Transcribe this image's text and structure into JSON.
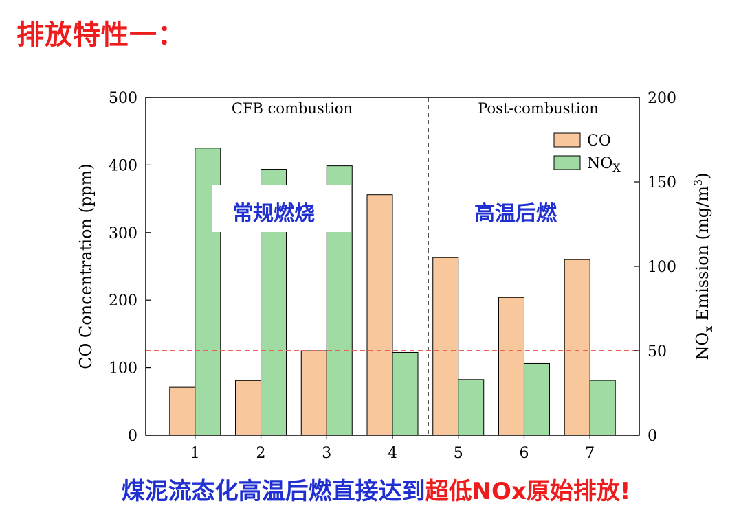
{
  "slide": {
    "title": "排放特性一：",
    "conclusion_blue": "煤泥流态化高温后燃直接达到",
    "conclusion_red": "超低NOx原始排放!"
  },
  "chart_data": {
    "type": "bar",
    "categories": [
      "1",
      "2",
      "3",
      "4",
      "5",
      "6",
      "7"
    ],
    "series": [
      {
        "name": "CO",
        "axis": "left",
        "color": "#f8c79b",
        "values": [
          71,
          81,
          125,
          356,
          263,
          204,
          260
        ]
      },
      {
        "name": "NOx",
        "axis": "right",
        "color": "#9fdba3",
        "values": [
          170,
          157.5,
          159.5,
          49,
          33,
          42.5,
          32.5
        ]
      }
    ],
    "ylabel": "CO Concentration (ppm)",
    "y2label_parts": {
      "base": "NO",
      "sub": "x",
      "rest": " Emission (mg/m",
      "sup": "3",
      "end": ")"
    },
    "ylim": [
      0,
      500
    ],
    "y2lim": [
      0,
      200
    ],
    "yticks": [
      "0",
      "100",
      "200",
      "300",
      "400",
      "500"
    ],
    "y2ticks": [
      "0",
      "50",
      "100",
      "150",
      "200"
    ],
    "regions": [
      {
        "label": "CFB combustion",
        "overlay": "常规燃烧"
      },
      {
        "label": "Post-combustion",
        "overlay": "高温后燃"
      }
    ],
    "divider_after_category": 4,
    "reference_line": {
      "axis": "left",
      "value": 125,
      "color": "#e8625a",
      "style": "dashed"
    },
    "legend": {
      "placement": "top-right",
      "entries": [
        {
          "base": "CO",
          "sub": ""
        },
        {
          "base": "NO",
          "sub": "X"
        }
      ]
    },
    "grid": false
  }
}
